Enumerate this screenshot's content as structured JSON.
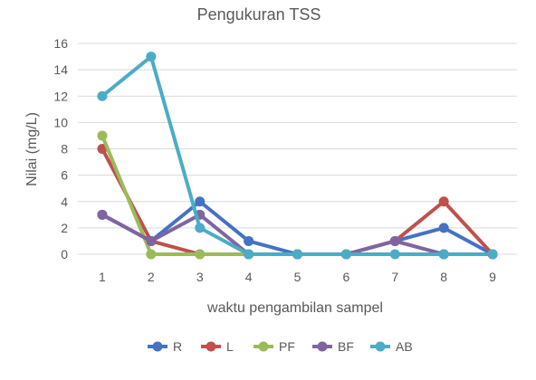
{
  "chart_data": {
    "type": "line",
    "title": "Pengukuran TSS",
    "xlabel": "waktu pengambilan sampel",
    "ylabel": "Nilai (mg/L)",
    "categories": [
      "1",
      "2",
      "3",
      "4",
      "5",
      "6",
      "7",
      "8",
      "9"
    ],
    "y_ticks": [
      "0",
      "2",
      "4",
      "6",
      "8",
      "10",
      "12",
      "14",
      "16"
    ],
    "ylim": [
      0,
      16
    ],
    "grid": "horizontal",
    "legend_position": "bottom",
    "series": [
      {
        "name": "R",
        "color": "#4472C4",
        "values": [
          3,
          1,
          4,
          1,
          0,
          0,
          1,
          2,
          0
        ]
      },
      {
        "name": "L",
        "color": "#C0504D",
        "values": [
          8,
          1,
          0,
          0,
          0,
          0,
          1,
          4,
          0
        ]
      },
      {
        "name": "PF",
        "color": "#9BBB59",
        "values": [
          9,
          0,
          0,
          0,
          0,
          0,
          1,
          0,
          0
        ]
      },
      {
        "name": "BF",
        "color": "#8064A2",
        "values": [
          3,
          1,
          3,
          0,
          0,
          0,
          1,
          0,
          0
        ]
      },
      {
        "name": "AB",
        "color": "#4BACC6",
        "values": [
          12,
          15,
          2,
          0,
          0,
          0,
          0,
          0,
          0
        ]
      }
    ]
  }
}
